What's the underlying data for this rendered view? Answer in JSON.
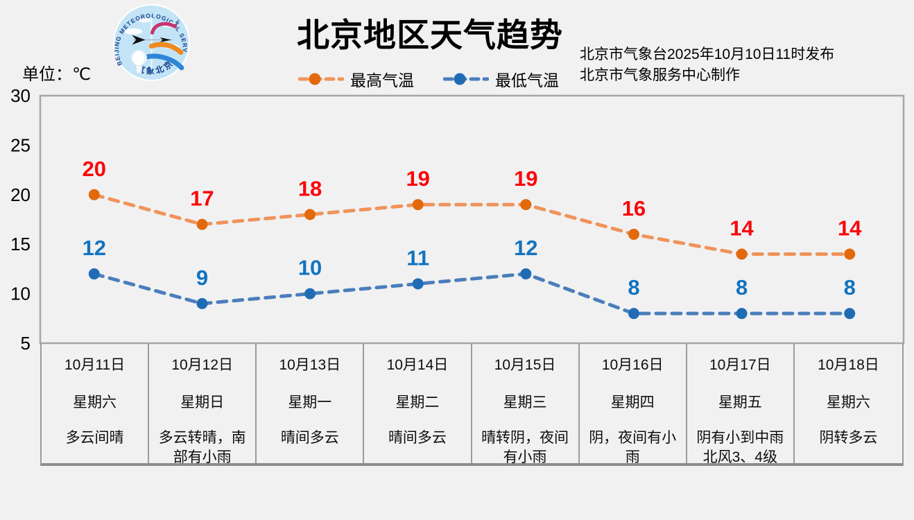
{
  "window": {
    "bg_color": "#F1F1F2"
  },
  "header": {
    "title": "北京地区天气趋势",
    "unit_label": "单位：℃",
    "issued_line1": "北京市气象台2025年10月10日11时发布",
    "issued_line2": "北京市气象服务中心制作",
    "logo": {
      "arc_text": "BEIJING  METEOROLOGICAL  SERVICE",
      "bottom_text": "气象北京"
    }
  },
  "chart_data": {
    "type": "line",
    "title": "北京地区天气趋势",
    "ylabel": "单位：℃",
    "ylim": [
      5,
      30
    ],
    "yticks": [
      30,
      25,
      20,
      15,
      10,
      5
    ],
    "grid": false,
    "legend_position": "top-center",
    "line_style": "dashed",
    "axis_color": "#A6A6A6",
    "tick_label_color": "#000000",
    "categories": [
      "10月11日",
      "10月12日",
      "10月13日",
      "10月14日",
      "10月15日",
      "10月16日",
      "10月17日",
      "10月18日"
    ],
    "series": [
      {
        "name": "最高气温",
        "values": [
          20,
          17,
          18,
          19,
          19,
          16,
          14,
          14
        ],
        "line_color": "#F0935A",
        "marker_color": "#E2690C",
        "label_color": "#FB0509"
      },
      {
        "name": "最低气温",
        "values": [
          12,
          9,
          10,
          11,
          12,
          8,
          8,
          8
        ],
        "line_color": "#4A7EBB",
        "marker_color": "#1F6CB4",
        "label_color": "#1173BE"
      }
    ],
    "days": [
      {
        "date": "10月11日",
        "weekday": "星期六",
        "weather": "多云间晴"
      },
      {
        "date": "10月12日",
        "weekday": "星期日",
        "weather": "多云转晴，南部有小雨"
      },
      {
        "date": "10月13日",
        "weekday": "星期一",
        "weather": "晴间多云"
      },
      {
        "date": "10月14日",
        "weekday": "星期二",
        "weather": "晴间多云"
      },
      {
        "date": "10月15日",
        "weekday": "星期三",
        "weather": "晴转阴，夜间有小雨"
      },
      {
        "date": "10月16日",
        "weekday": "星期四",
        "weather": "阴，夜间有小雨"
      },
      {
        "date": "10月17日",
        "weekday": "星期五",
        "weather": "阴有小到中雨\n北风3、4级"
      },
      {
        "date": "10月18日",
        "weekday": "星期六",
        "weather": "阴转多云"
      }
    ]
  }
}
